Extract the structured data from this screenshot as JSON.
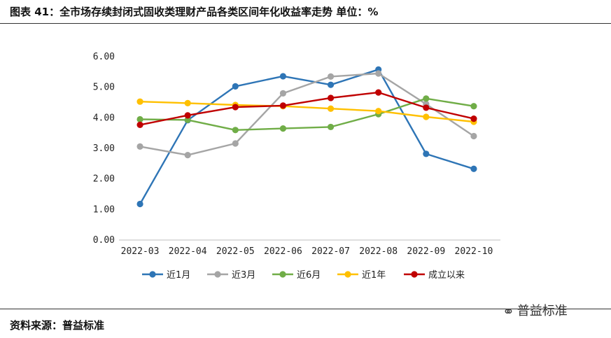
{
  "header": {
    "title": "图表 41：全市场存续封闭式固收类理财产品各类区间年化收益率走势    单位：%"
  },
  "footer": {
    "source": "资料来源：普益标准",
    "watermark": "普益标准",
    "watermark_icon": "wechat-icon"
  },
  "chart_data": {
    "type": "line",
    "categories": [
      "2022-03",
      "2022-04",
      "2022-05",
      "2022-06",
      "2022-07",
      "2022-08",
      "2022-09",
      "2022-10"
    ],
    "ylim": [
      0,
      6
    ],
    "yticks": [
      "0.00",
      "1.00",
      "2.00",
      "3.00",
      "4.00",
      "5.00",
      "6.00"
    ],
    "grid": false,
    "legend_position": "bottom",
    "series": [
      {
        "name": "近1月",
        "color": "#2E75B6",
        "values": [
          1.18,
          3.92,
          5.03,
          5.36,
          5.08,
          5.58,
          2.82,
          2.33
        ]
      },
      {
        "name": "近3月",
        "color": "#A5A5A5",
        "values": [
          3.06,
          2.78,
          3.16,
          4.8,
          5.35,
          5.45,
          4.45,
          3.4
        ]
      },
      {
        "name": "近6月",
        "color": "#70AD47",
        "values": [
          3.95,
          3.93,
          3.6,
          3.65,
          3.7,
          4.12,
          4.63,
          4.38
        ]
      },
      {
        "name": "近1年",
        "color": "#FFC000",
        "values": [
          4.53,
          4.48,
          4.42,
          4.38,
          4.3,
          4.22,
          4.03,
          3.87
        ]
      },
      {
        "name": "成立以来",
        "color": "#C00000",
        "values": [
          3.77,
          4.08,
          4.35,
          4.4,
          4.65,
          4.83,
          4.33,
          3.97
        ]
      }
    ]
  }
}
